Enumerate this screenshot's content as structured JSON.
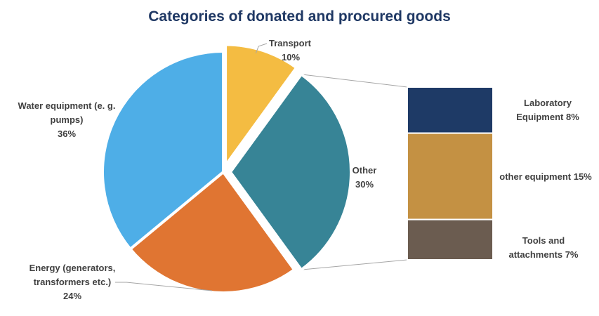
{
  "chart_data": {
    "type": "bar-of-pie",
    "title": "Categories of donated and procured goods",
    "pie": {
      "slices": [
        {
          "name": "Transport",
          "value": 10,
          "label": "Transport",
          "pct": "10%",
          "color": "#f4bc42"
        },
        {
          "name": "Other",
          "value": 30,
          "label": "Other",
          "pct": "30%",
          "color": "#378496"
        },
        {
          "name": "Energy (generators, transformers etc.)",
          "value": 24,
          "label_lines": [
            "Energy (generators,",
            "transformers etc.)"
          ],
          "pct": "24%",
          "color": "#e07532"
        },
        {
          "name": "Water equipment (e. g. pumps)",
          "value": 36,
          "label_lines": [
            "Water equipment (e. g.",
            "pumps)"
          ],
          "pct": "36%",
          "color": "#4eaee7"
        }
      ]
    },
    "bar": {
      "segments": [
        {
          "name": "Laboratory Equipment",
          "value": 8,
          "label_lines": [
            "Laboratory",
            "Equipment 8%"
          ],
          "color": "#1e3a66"
        },
        {
          "name": "other equipment",
          "value": 15,
          "label_lines": [
            "other equipment 15%"
          ],
          "color": "#c49143"
        },
        {
          "name": "Tools and attachments",
          "value": 7,
          "label_lines": [
            "Tools and",
            "attachments 7%"
          ],
          "color": "#6b5c50"
        }
      ]
    },
    "colors": {
      "title": "#1f3864",
      "label": "#404040",
      "connector": "#a6a6a6"
    }
  }
}
